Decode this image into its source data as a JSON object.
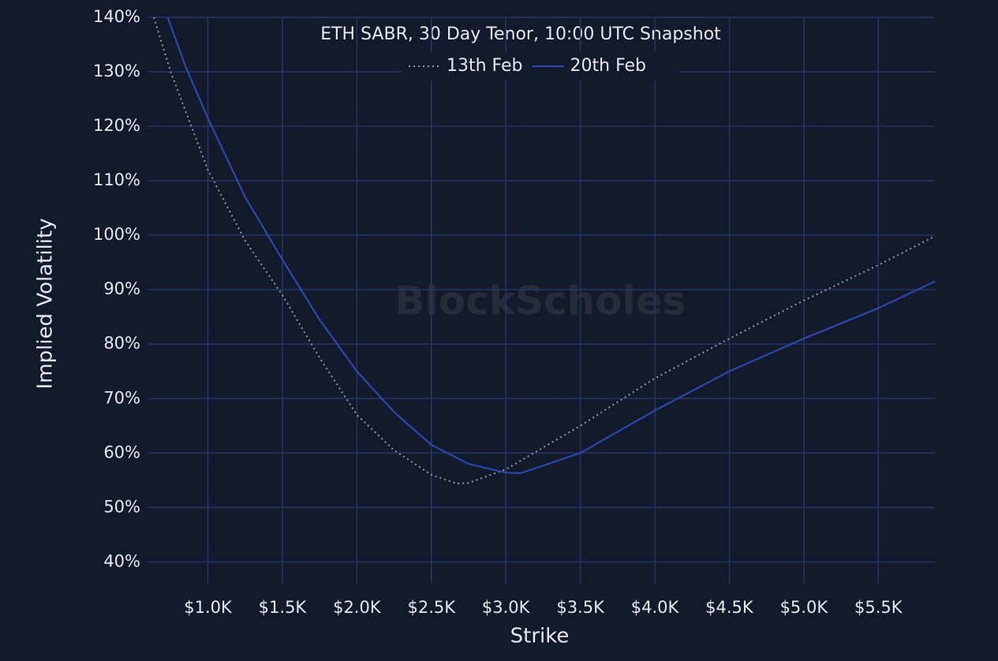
{
  "chart_data": {
    "type": "line",
    "title": "ETH SABR, 30 Day Tenor, 10:00 UTC Snapshot",
    "watermark": "BlockScholes",
    "x_label": "Strike",
    "y_label": "Implied Volatility",
    "xlim": [
      600,
      5880
    ],
    "ylim": [
      36,
      140
    ],
    "xticks": [
      {
        "value": 1000,
        "label": "$1.0K"
      },
      {
        "value": 1500,
        "label": "$1.5K"
      },
      {
        "value": 2000,
        "label": "$2.0K"
      },
      {
        "value": 2500,
        "label": "$2.5K"
      },
      {
        "value": 3000,
        "label": "$3.0K"
      },
      {
        "value": 3500,
        "label": "$3.5K"
      },
      {
        "value": 4000,
        "label": "$4.0K"
      },
      {
        "value": 4500,
        "label": "$4.5K"
      },
      {
        "value": 5000,
        "label": "$5.0K"
      },
      {
        "value": 5500,
        "label": "$5.5K"
      }
    ],
    "yticks": [
      {
        "value": 40,
        "label": "40%"
      },
      {
        "value": 50,
        "label": "50%"
      },
      {
        "value": 60,
        "label": "60%"
      },
      {
        "value": 70,
        "label": "70%"
      },
      {
        "value": 80,
        "label": "80%"
      },
      {
        "value": 90,
        "label": "90%"
      },
      {
        "value": 100,
        "label": "100%"
      },
      {
        "value": 110,
        "label": "110%"
      },
      {
        "value": 120,
        "label": "120%"
      },
      {
        "value": 130,
        "label": "130%"
      },
      {
        "value": 140,
        "label": "140%"
      }
    ],
    "grid": true,
    "legend": "top",
    "series": [
      {
        "name": "13th Feb",
        "color": "#9a9a9a",
        "line_style": "dotted",
        "x": [
          637,
          750,
          1000,
          1250,
          1500,
          1750,
          2000,
          2250,
          2500,
          2670,
          2750,
          3000,
          3500,
          4000,
          4500,
          5000,
          5500,
          5880
        ],
        "values": [
          140,
          130,
          112,
          99,
          89,
          77.5,
          67,
          60.5,
          56,
          54.4,
          54.5,
          57,
          65,
          73.7,
          81,
          88,
          94.5,
          99.8
        ]
      },
      {
        "name": "20th Feb",
        "color": "#2a48b0",
        "line_style": "solid",
        "x": [
          730,
          850,
          1000,
          1250,
          1500,
          1750,
          2000,
          2250,
          2500,
          2750,
          3000,
          3100,
          3500,
          4000,
          4500,
          5000,
          5500,
          5880
        ],
        "values": [
          140,
          131,
          121.5,
          107,
          95.5,
          84.5,
          75,
          67.5,
          61.5,
          58,
          56.4,
          56.3,
          60,
          67.8,
          75,
          81,
          86.6,
          91.5
        ]
      }
    ]
  }
}
